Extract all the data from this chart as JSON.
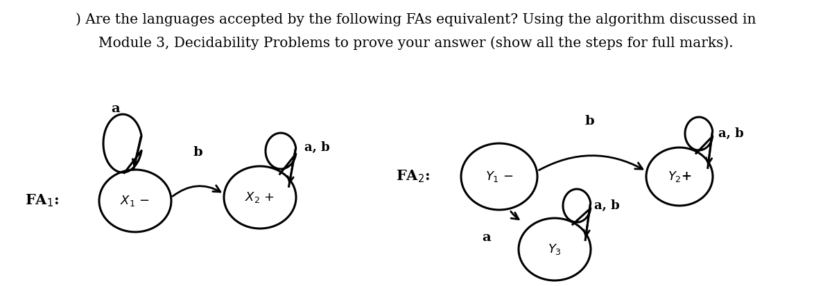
{
  "title_line1": ") Are the languages accepted by the following FAs equivalent? Using the algorithm discussed in",
  "title_line2": "Module 3, Decidability Problems to prove your answer (show all the steps for full marks).",
  "bg_color": "#ffffff",
  "fa1_label": "FA$_1$:",
  "fa2_label": "FA$_2$:",
  "fa1_x1_label": "$X_1$ −",
  "fa1_x2_label": "$X_2$ +",
  "fa2_y1_label": "$Y_1$ -",
  "fa2_y2_label": "$Y_2$+",
  "fa2_y3_label": "$Y_3$",
  "font_size_title": 14.5,
  "font_size_node": 13,
  "font_size_label": 15,
  "font_size_edge": 13
}
